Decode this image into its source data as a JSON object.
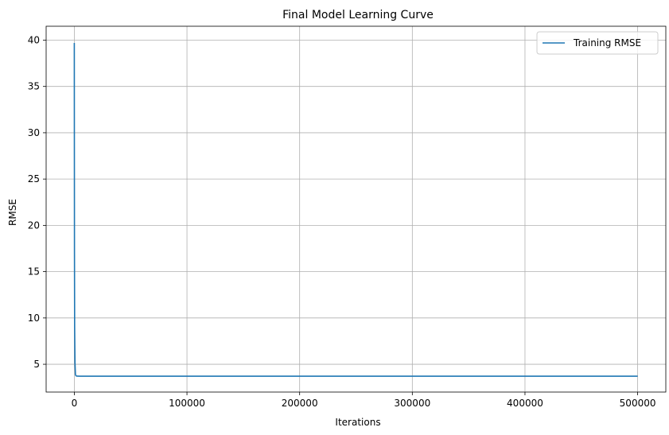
{
  "chart_data": {
    "type": "line",
    "title": "Final Model Learning Curve",
    "xlabel": "Iterations",
    "ylabel": "RMSE",
    "xlim": [
      -25000,
      525000
    ],
    "ylim": [
      2.0,
      41.5
    ],
    "xticks": [
      0,
      100000,
      200000,
      300000,
      400000,
      500000
    ],
    "xtick_labels": [
      "0",
      "100000",
      "200000",
      "300000",
      "400000",
      "500000"
    ],
    "yticks": [
      5,
      10,
      15,
      20,
      25,
      30,
      35,
      40
    ],
    "ytick_labels": [
      "5",
      "10",
      "15",
      "20",
      "25",
      "30",
      "35",
      "40"
    ],
    "grid": true,
    "legend_position": "top-right",
    "series": [
      {
        "name": "Training RMSE",
        "color": "#1f77b4",
        "x": [
          0,
          50,
          150,
          300,
          600,
          1000,
          1500,
          2500,
          5000,
          10000,
          50000,
          100000,
          200000,
          300000,
          400000,
          500000
        ],
        "y": [
          39.7,
          30.0,
          17.0,
          9.0,
          5.2,
          3.9,
          3.75,
          3.72,
          3.71,
          3.71,
          3.71,
          3.71,
          3.71,
          3.71,
          3.71,
          3.71
        ]
      }
    ]
  }
}
